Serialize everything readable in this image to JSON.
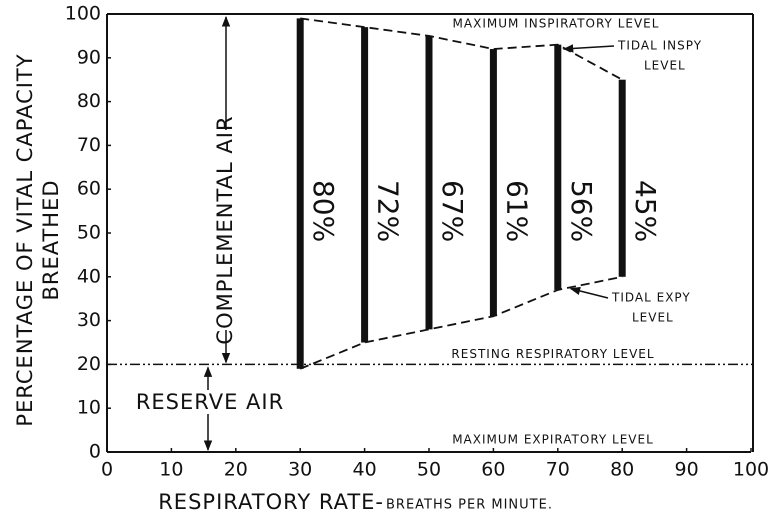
{
  "chart_data": {
    "type": "floating_bar",
    "ylabel_lines": [
      "PERCENTAGE OF VITAL CAPACITY",
      "BREATHED"
    ],
    "xlabel": "RESPIRATORY RATE-",
    "xlabel_sub": "BREATHS PER MINUTE.",
    "x": [
      30,
      40,
      50,
      60,
      70,
      80
    ],
    "lows": [
      19,
      25,
      28,
      31,
      37,
      40
    ],
    "values": [
      80,
      72,
      67,
      61,
      56,
      45
    ],
    "value_labels": [
      "80%",
      "72%",
      "67%",
      "61%",
      "56%",
      "45%"
    ],
    "color": "#111111",
    "resting_level": 20,
    "xlim": [
      0,
      100
    ],
    "ylim": [
      0,
      100
    ],
    "xticks": [
      0,
      10,
      20,
      30,
      40,
      50,
      60,
      70,
      80,
      90,
      100
    ],
    "yticks": [
      0,
      10,
      20,
      30,
      40,
      50,
      60,
      70,
      80,
      90,
      100
    ],
    "annotations": {
      "max_insp": "MAXIMUM INSPIRATORY LEVEL",
      "tidal_insp": "TIDAL INSPY",
      "tidal_insp_level": "LEVEL",
      "tidal_exp": "TIDAL EXPY",
      "tidal_exp_level": "LEVEL",
      "resting": "RESTING RESPIRATORY LEVEL",
      "max_exp": "MAXIMUM EXPIRATORY LEVEL",
      "complemental": "COMPLEMENTAL AIR",
      "reserve": "RESERVE AIR"
    }
  }
}
